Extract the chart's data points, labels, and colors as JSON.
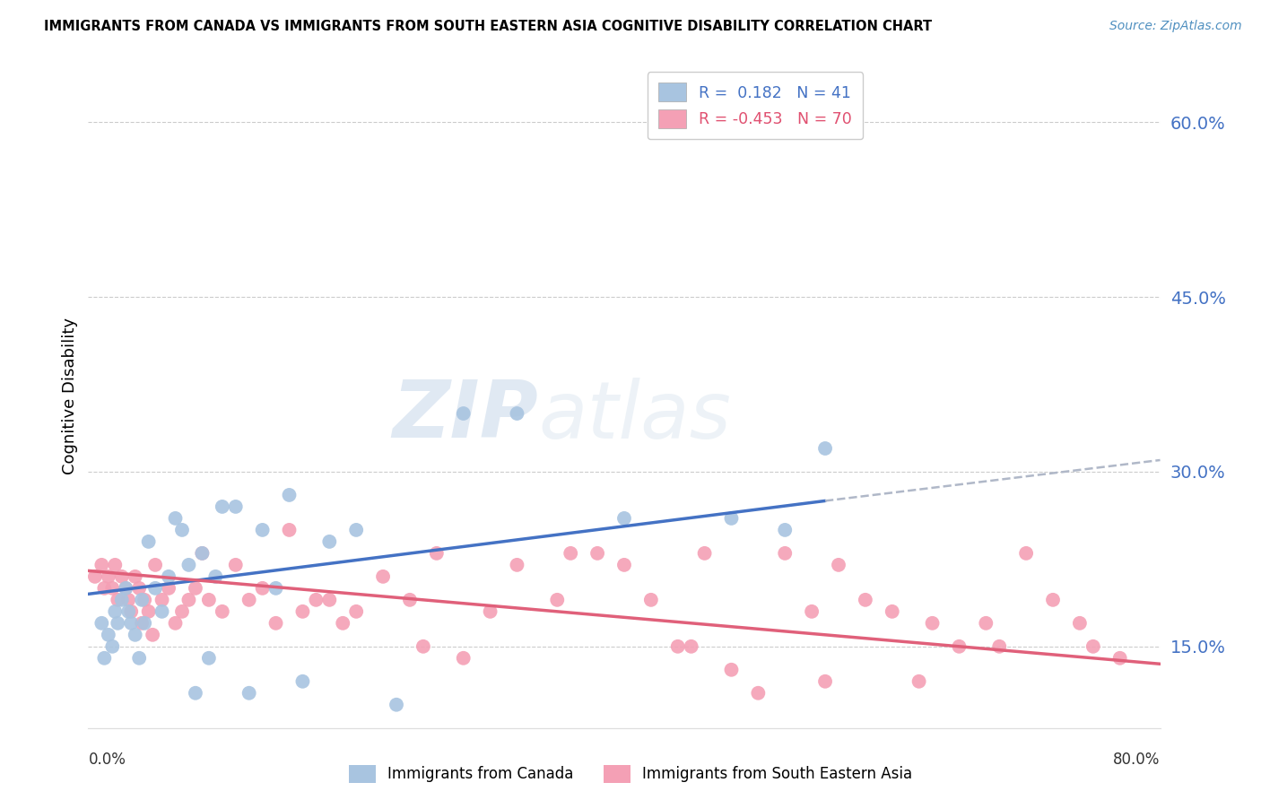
{
  "title": "IMMIGRANTS FROM CANADA VS IMMIGRANTS FROM SOUTH EASTERN ASIA COGNITIVE DISABILITY CORRELATION CHART",
  "source": "Source: ZipAtlas.com",
  "ylabel": "Cognitive Disability",
  "yticks": [
    15.0,
    30.0,
    45.0,
    60.0
  ],
  "xlim": [
    0.0,
    80.0
  ],
  "ylim": [
    8.0,
    65.0
  ],
  "canada_color": "#a8c4e0",
  "canada_line_color": "#4472c4",
  "sea_color": "#f4a0b5",
  "sea_line_color": "#e0607a",
  "dashed_line_color": "#b0b8c8",
  "canada_x": [
    1.0,
    1.2,
    1.5,
    1.8,
    2.0,
    2.2,
    2.5,
    2.8,
    3.0,
    3.2,
    3.5,
    3.8,
    4.0,
    4.2,
    4.5,
    5.0,
    5.5,
    6.0,
    6.5,
    7.0,
    7.5,
    8.0,
    8.5,
    9.0,
    9.5,
    10.0,
    11.0,
    12.0,
    13.0,
    14.0,
    15.0,
    16.0,
    18.0,
    20.0,
    23.0,
    28.0,
    32.0,
    40.0,
    48.0,
    52.0,
    55.0
  ],
  "canada_y": [
    17.0,
    14.0,
    16.0,
    15.0,
    18.0,
    17.0,
    19.0,
    20.0,
    18.0,
    17.0,
    16.0,
    14.0,
    19.0,
    17.0,
    24.0,
    20.0,
    18.0,
    21.0,
    26.0,
    25.0,
    22.0,
    11.0,
    23.0,
    14.0,
    21.0,
    27.0,
    27.0,
    11.0,
    25.0,
    20.0,
    28.0,
    12.0,
    24.0,
    25.0,
    10.0,
    35.0,
    35.0,
    26.0,
    26.0,
    25.0,
    32.0
  ],
  "sea_x": [
    0.5,
    1.0,
    1.2,
    1.5,
    1.8,
    2.0,
    2.2,
    2.5,
    2.8,
    3.0,
    3.2,
    3.5,
    3.8,
    4.0,
    4.2,
    4.5,
    4.8,
    5.0,
    5.5,
    6.0,
    6.5,
    7.0,
    7.5,
    8.0,
    8.5,
    9.0,
    10.0,
    11.0,
    12.0,
    13.0,
    14.0,
    15.0,
    16.0,
    17.0,
    18.0,
    19.0,
    20.0,
    22.0,
    24.0,
    25.0,
    26.0,
    28.0,
    30.0,
    32.0,
    35.0,
    36.0,
    38.0,
    40.0,
    42.0,
    44.0,
    45.0,
    46.0,
    48.0,
    50.0,
    52.0,
    54.0,
    55.0,
    56.0,
    58.0,
    60.0,
    62.0,
    63.0,
    65.0,
    67.0,
    68.0,
    70.0,
    72.0,
    74.0,
    75.0,
    77.0
  ],
  "sea_y": [
    21.0,
    22.0,
    20.0,
    21.0,
    20.0,
    22.0,
    19.0,
    21.0,
    20.0,
    19.0,
    18.0,
    21.0,
    20.0,
    17.0,
    19.0,
    18.0,
    16.0,
    22.0,
    19.0,
    20.0,
    17.0,
    18.0,
    19.0,
    20.0,
    23.0,
    19.0,
    18.0,
    22.0,
    19.0,
    20.0,
    17.0,
    25.0,
    18.0,
    19.0,
    19.0,
    17.0,
    18.0,
    21.0,
    19.0,
    15.0,
    23.0,
    14.0,
    18.0,
    22.0,
    19.0,
    23.0,
    23.0,
    22.0,
    19.0,
    15.0,
    15.0,
    23.0,
    13.0,
    11.0,
    23.0,
    18.0,
    12.0,
    22.0,
    19.0,
    18.0,
    12.0,
    17.0,
    15.0,
    17.0,
    15.0,
    23.0,
    19.0,
    17.0,
    15.0,
    14.0
  ],
  "canada_blue_x_start": 0.0,
  "canada_blue_x_end": 55.0,
  "canada_blue_y_start": 19.5,
  "canada_blue_y_end": 27.5,
  "canada_dash_x_start": 55.0,
  "canada_dash_x_end": 80.0,
  "canada_dash_y_start": 27.5,
  "canada_dash_y_end": 31.0,
  "sea_line_x_start": 0.0,
  "sea_line_x_end": 80.0,
  "sea_line_y_start": 21.5,
  "sea_line_y_end": 13.5
}
